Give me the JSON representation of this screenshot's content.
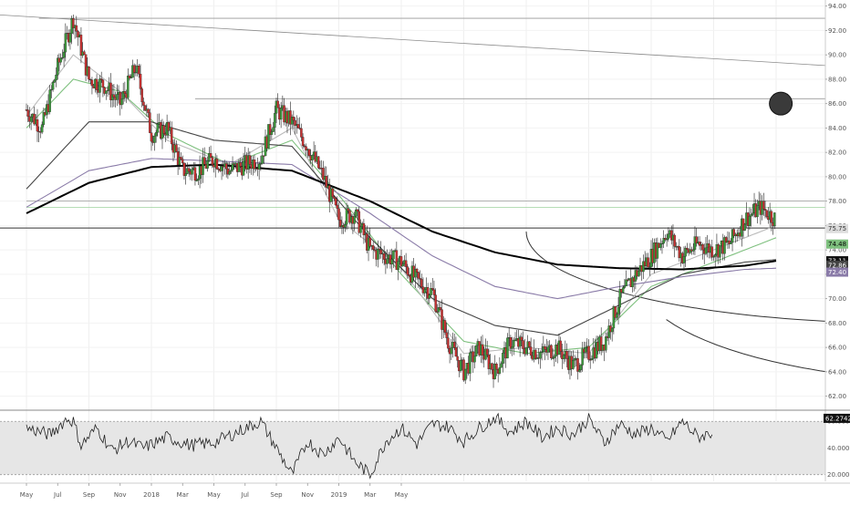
{
  "chart_data": [
    {
      "type": "candlestick",
      "price_axis": {
        "ticks": [
          "94.00",
          "92.00",
          "90.00",
          "88.00",
          "86.00",
          "84.00",
          "82.00",
          "80.00",
          "78.00",
          "76.00",
          "74.00",
          "72.00",
          "70.00",
          "68.00",
          "66.00",
          "64.00",
          "62.00"
        ],
        "ylim": [
          61.0,
          94.5
        ]
      },
      "date_axis": {
        "ticks": [
          "May",
          "Jul",
          "Sep",
          "Nov",
          "2018",
          "Mar",
          "May",
          "Jul",
          "Sep",
          "Nov",
          "2019",
          "Mar",
          "May"
        ],
        "tick_month_index": [
          0,
          2,
          4,
          6,
          8,
          10,
          12,
          14,
          16,
          18,
          20,
          22,
          24
        ]
      },
      "candle_anchor_prices": [
        [
          0,
          85.5
        ],
        [
          1,
          84.0
        ],
        [
          2,
          89.0
        ],
        [
          3,
          93.0
        ],
        [
          4,
          88.0
        ],
        [
          5,
          87.5
        ],
        [
          6,
          86.0
        ],
        [
          7,
          89.0
        ],
        [
          8,
          83.5
        ],
        [
          9,
          84.0
        ],
        [
          10,
          80.5
        ],
        [
          11,
          80.5
        ],
        [
          12,
          81.5
        ],
        [
          13,
          80.5
        ],
        [
          14,
          81.0
        ],
        [
          15,
          81.5
        ],
        [
          16,
          85.5
        ],
        [
          17,
          84.5
        ],
        [
          18,
          82.5
        ],
        [
          19,
          80.0
        ],
        [
          20,
          76.5
        ],
        [
          21,
          77.0
        ],
        [
          22,
          74.0
        ],
        [
          23,
          73.5
        ],
        [
          24,
          73.0
        ],
        [
          25,
          71.5
        ],
        [
          26,
          70.5
        ],
        [
          27,
          66.5
        ],
        [
          28,
          64.0
        ],
        [
          29,
          66.0
        ],
        [
          30,
          64.0
        ],
        [
          31,
          66.5
        ],
        [
          32,
          66.0
        ],
        [
          33,
          65.5
        ],
        [
          34,
          66.0
        ],
        [
          35,
          64.5
        ],
        [
          36,
          65.5
        ],
        [
          37,
          66.5
        ],
        [
          38,
          70.0
        ],
        [
          39,
          72.0
        ],
        [
          40,
          73.5
        ],
        [
          41,
          75.5
        ],
        [
          42,
          73.5
        ],
        [
          43,
          74.5
        ],
        [
          44,
          74.0
        ],
        [
          45,
          74.5
        ],
        [
          46,
          76.5
        ],
        [
          47,
          77.5
        ],
        [
          48,
          76.5
        ]
      ],
      "moving_averages": [
        {
          "color": "#7ec07e",
          "anchors": [
            [
              0,
              84.0
            ],
            [
              3,
              88.0
            ],
            [
              6,
              87.0
            ],
            [
              9,
              83.5
            ],
            [
              13,
              81.0
            ],
            [
              17,
              83.0
            ],
            [
              20,
              78.5
            ],
            [
              24,
              72.0
            ],
            [
              28,
              66.5
            ],
            [
              32,
              65.5
            ],
            [
              36,
              66.0
            ],
            [
              40,
              71.0
            ],
            [
              44,
              73.0
            ],
            [
              48,
              75.0
            ]
          ]
        },
        {
          "color": "#bbbbbb",
          "anchors": [
            [
              0,
              85.0
            ],
            [
              3,
              90.0
            ],
            [
              6,
              87.0
            ],
            [
              9,
              83.0
            ],
            [
              13,
              81.0
            ],
            [
              17,
              84.0
            ],
            [
              20,
              76.5
            ],
            [
              24,
              72.5
            ],
            [
              28,
              65.5
            ],
            [
              32,
              66.0
            ],
            [
              36,
              65.5
            ],
            [
              40,
              72.0
            ],
            [
              44,
              74.0
            ],
            [
              48,
              76.0
            ]
          ]
        },
        {
          "color": "#444444",
          "anchors": [
            [
              0,
              79.0
            ],
            [
              4,
              84.5
            ],
            [
              8,
              84.5
            ],
            [
              12,
              83.0
            ],
            [
              17,
              82.5
            ],
            [
              22,
              75.0
            ],
            [
              26,
              70.0
            ],
            [
              30,
              67.8
            ],
            [
              34,
              67.0
            ],
            [
              38,
              69.5
            ],
            [
              42,
              72.0
            ],
            [
              46,
              73.0
            ],
            [
              48,
              73.2
            ]
          ]
        },
        {
          "color": "#8a7ba8",
          "anchors": [
            [
              0,
              77.5
            ],
            [
              4,
              80.5
            ],
            [
              8,
              81.5
            ],
            [
              12,
              81.3
            ],
            [
              17,
              81.0
            ],
            [
              22,
              77.0
            ],
            [
              26,
              73.5
            ],
            [
              30,
              71.0
            ],
            [
              34,
              70.0
            ],
            [
              38,
              71.0
            ],
            [
              42,
              71.8
            ],
            [
              46,
              72.4
            ],
            [
              48,
              72.5
            ]
          ]
        },
        {
          "color": "#000000",
          "anchors": [
            [
              0,
              77.0
            ],
            [
              4,
              79.5
            ],
            [
              8,
              80.8
            ],
            [
              12,
              81.0
            ],
            [
              17,
              80.5
            ],
            [
              22,
              78.0
            ],
            [
              26,
              75.5
            ],
            [
              30,
              73.8
            ],
            [
              34,
              72.8
            ],
            [
              38,
              72.5
            ],
            [
              42,
              72.4
            ],
            [
              46,
              72.7
            ],
            [
              48,
              73.1
            ]
          ]
        }
      ],
      "horizontal_levels": [
        93.0,
        86.4,
        78.0,
        77.5,
        75.8
      ],
      "trend_lines": [
        {
          "from": [
            -1,
            93.3
          ],
          "to": [
            62,
            83.4
          ]
        },
        {
          "from": [
            38,
            76.3
          ],
          "to": [
            55,
            95.5
          ]
        },
        {
          "from": [
            44,
            75.0
          ],
          "to": [
            62,
            94.5
          ]
        },
        {
          "from": [
            38,
            76.3
          ],
          "to": [
            62,
            85.8
          ]
        },
        {
          "from": [
            42,
            78.0
          ],
          "to": [
            46,
            78.0
          ]
        }
      ],
      "circle_markers": [
        [
          48.3,
          86.0
        ],
        [
          52.3,
          93.2
        ]
      ],
      "arcs": [
        {
          "center": [
            28,
            75.5
          ],
          "rx": 12,
          "ry": 7.5,
          "span": [
            100,
            180
          ]
        },
        {
          "center": [
            30,
            72.0
          ],
          "rx": 10.5,
          "ry": 8.8,
          "span": [
            25,
            155
          ]
        },
        {
          "center": [
            41,
            75.5
          ],
          "rx": 6,
          "ry": 6,
          "span": [
            0,
            80
          ]
        }
      ],
      "price_badges": [
        {
          "text": "75.75",
          "value": 75.75,
          "bg": "#dddddd",
          "fg": "#333333"
        },
        {
          "text": "74.48",
          "value": 74.48,
          "bg": "#7ec07e",
          "fg": "#000000"
        },
        {
          "text": "73.11",
          "value": 73.11,
          "bg": "#111111",
          "fg": "#ffffff"
        },
        {
          "text": "72.86",
          "value": 72.86,
          "bg": "#444444",
          "fg": "#ffffff"
        },
        {
          "text": "72.40",
          "value": 72.4,
          "bg": "#8a7ba8",
          "fg": "#ffffff"
        }
      ]
    },
    {
      "type": "line",
      "indicator_axis": {
        "ticks": [
          "60.0000",
          "40.0000",
          "20.0000"
        ],
        "ylim": [
          15,
          67
        ]
      },
      "band": [
        20,
        60
      ],
      "band_color": "#e6e6e6",
      "current_value_label": "62.2742",
      "current_value": 62.2742,
      "anchors": [
        [
          0,
          55
        ],
        [
          1.5,
          50
        ],
        [
          2.6,
          62
        ],
        [
          3,
          60
        ],
        [
          3.5,
          42
        ],
        [
          4.5,
          55
        ],
        [
          5.5,
          38
        ],
        [
          6.5,
          45
        ],
        [
          7.5,
          40
        ],
        [
          9,
          48
        ],
        [
          10.5,
          42
        ],
        [
          12,
          44
        ],
        [
          13.5,
          52
        ],
        [
          15,
          60
        ],
        [
          16,
          40
        ],
        [
          17,
          20
        ],
        [
          18,
          45
        ],
        [
          19,
          35
        ],
        [
          20,
          48
        ],
        [
          21,
          30
        ],
        [
          22,
          20
        ],
        [
          23,
          45
        ],
        [
          24,
          55
        ],
        [
          25,
          43
        ],
        [
          26,
          58
        ],
        [
          27,
          56
        ],
        [
          28,
          45
        ],
        [
          29,
          55
        ],
        [
          30,
          63
        ],
        [
          31,
          52
        ],
        [
          32,
          60
        ],
        [
          33,
          48
        ],
        [
          34,
          55
        ],
        [
          35,
          50
        ],
        [
          36,
          62
        ],
        [
          37,
          44
        ],
        [
          38,
          58
        ],
        [
          39,
          50
        ],
        [
          40,
          55
        ],
        [
          41,
          45
        ],
        [
          42,
          60
        ],
        [
          43,
          48
        ],
        [
          44,
          52
        ]
      ]
    }
  ]
}
